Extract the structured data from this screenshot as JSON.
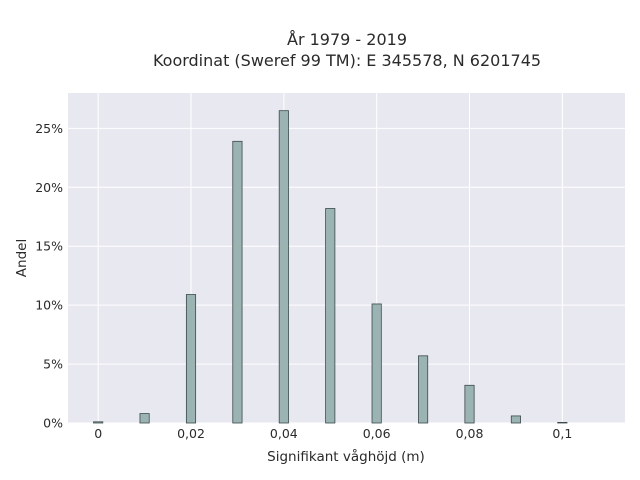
{
  "chart_data": {
    "type": "bar",
    "title_line1": "År 1979 - 2019",
    "title_line2": "Koordinat (Sweref 99 TM): E 345578, N 6201745",
    "xlabel": "Signifikant våghöjd (m)",
    "ylabel": "Andel",
    "x": [
      0,
      0.01,
      0.02,
      0.03,
      0.04,
      0.05,
      0.06,
      0.07,
      0.08,
      0.09,
      0.1
    ],
    "values": [
      0.1,
      0.8,
      10.9,
      23.9,
      26.5,
      18.2,
      10.1,
      5.7,
      3.2,
      0.6,
      0.05
    ],
    "bin_width": 0.002,
    "xlim": [
      -0.0065,
      0.1135
    ],
    "ylim": [
      0,
      28
    ],
    "x_ticks": [
      {
        "value": 0,
        "label": "0"
      },
      {
        "value": 0.02,
        "label": "0,02"
      },
      {
        "value": 0.04,
        "label": "0,04"
      },
      {
        "value": 0.06,
        "label": "0,06"
      },
      {
        "value": 0.08,
        "label": "0,08"
      },
      {
        "value": 0.1,
        "label": "0,1"
      }
    ],
    "y_ticks": [
      {
        "value": 0,
        "label": "0%"
      },
      {
        "value": 5,
        "label": "5%"
      },
      {
        "value": 10,
        "label": "10%"
      },
      {
        "value": 15,
        "label": "15%"
      },
      {
        "value": 20,
        "label": "20%"
      },
      {
        "value": 25,
        "label": "25%"
      }
    ],
    "grid": true,
    "bar_color": "#9bb3b3",
    "bar_edge_color": "#3a4a4a",
    "plot_bg": "#e8e8f0",
    "grid_color": "#ffffff"
  }
}
